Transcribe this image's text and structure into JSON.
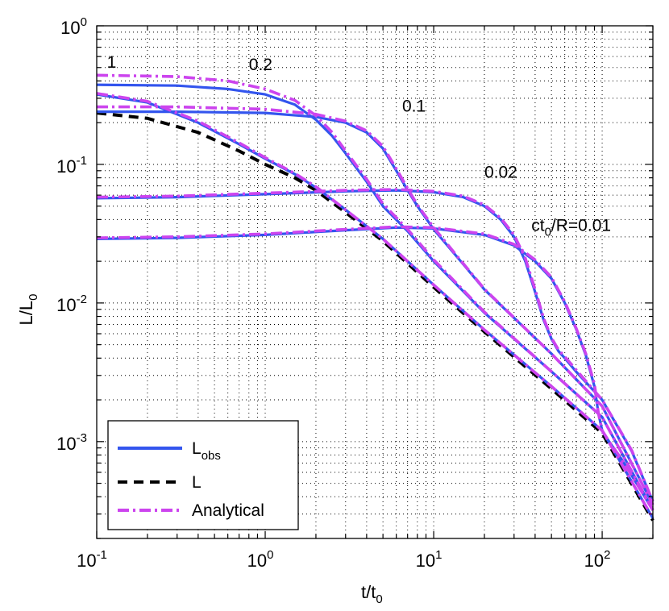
{
  "chart_data": {
    "type": "line",
    "x_scale": "log",
    "y_scale": "log",
    "xlim": [
      0.1,
      200
    ],
    "ylim": [
      0.0002,
      1
    ],
    "grid": true,
    "x_ticks": [
      {
        "base": "10",
        "exp": "-1",
        "value": 0.1
      },
      {
        "base": "10",
        "exp": "0",
        "value": 1
      },
      {
        "base": "10",
        "exp": "1",
        "value": 10
      },
      {
        "base": "10",
        "exp": "2",
        "value": 100
      }
    ],
    "y_ticks": [
      {
        "base": "10",
        "exp": "0",
        "value": 1
      },
      {
        "base": "10",
        "exp": "-1",
        "value": 0.1
      },
      {
        "base": "10",
        "exp": "-2",
        "value": 0.01
      },
      {
        "base": "10",
        "exp": "-3",
        "value": 0.001
      }
    ],
    "xlabel": {
      "main": "t/t",
      "sub": "0"
    },
    "ylabel": {
      "main": "L/L",
      "sub": "0"
    },
    "annotations": [
      {
        "text": "1",
        "x": 0.115,
        "y": 0.5
      },
      {
        "text": "0.2",
        "x": 0.8,
        "y": 0.48
      },
      {
        "text": "0.1",
        "x": 6.5,
        "y": 0.24
      },
      {
        "text": "0.02",
        "x": 20,
        "y": 0.08
      },
      {
        "text": "ct",
        "sub": "0",
        "rest": "/R=0.01",
        "x": 38,
        "y": 0.033
      }
    ],
    "legend": {
      "position": "bottom-left",
      "entries": [
        {
          "label": "L",
          "sub": "obs",
          "style": "solid",
          "color": "#3355ee"
        },
        {
          "label": "L",
          "sub": "",
          "style": "dashed",
          "color": "#000000"
        },
        {
          "label": "Analytical",
          "sub": "",
          "style": "dashdot",
          "color": "#cc44ee"
        }
      ]
    },
    "series": [
      {
        "role": "L",
        "style": "dashed",
        "color": "#000000",
        "x": [
          0.1,
          0.2,
          0.4,
          0.7,
          1,
          1.5,
          2,
          3,
          5,
          10,
          20,
          50,
          100,
          200
        ],
        "y": [
          0.235,
          0.215,
          0.17,
          0.125,
          0.1,
          0.08,
          0.065,
          0.045,
          0.028,
          0.013,
          0.0062,
          0.0024,
          0.00115,
          0.00027
        ]
      },
      {
        "role": "Lobs ct0/R=1",
        "style": "solid",
        "color": "#3355ee",
        "x": [
          0.1,
          0.2,
          0.4,
          0.7,
          1,
          1.5,
          2,
          3,
          5,
          10,
          20,
          50,
          100,
          200
        ],
        "y": [
          0.32,
          0.28,
          0.2,
          0.14,
          0.11,
          0.085,
          0.068,
          0.047,
          0.029,
          0.0135,
          0.0064,
          0.0025,
          0.0012,
          0.00028
        ]
      },
      {
        "role": "Lobs ct0/R=0.2",
        "style": "solid",
        "color": "#3355ee",
        "x": [
          0.1,
          0.3,
          0.6,
          1,
          1.5,
          2,
          2.5,
          3,
          4,
          5,
          7,
          10,
          20,
          50,
          100,
          200
        ],
        "y": [
          0.375,
          0.37,
          0.35,
          0.32,
          0.27,
          0.21,
          0.16,
          0.12,
          0.075,
          0.05,
          0.033,
          0.02,
          0.0085,
          0.0032,
          0.0015,
          0.00032
        ]
      },
      {
        "role": "Lobs ct0/R=0.1",
        "style": "solid",
        "color": "#3355ee",
        "x": [
          0.1,
          0.3,
          1,
          2,
          3,
          4,
          5,
          6,
          7,
          8,
          10,
          15,
          20,
          50,
          100,
          200
        ],
        "y": [
          0.24,
          0.24,
          0.235,
          0.22,
          0.2,
          0.17,
          0.13,
          0.09,
          0.065,
          0.05,
          0.034,
          0.019,
          0.0125,
          0.0043,
          0.0018,
          0.00035
        ]
      },
      {
        "role": "Lobs ct0/R=0.02",
        "style": "solid",
        "color": "#3355ee",
        "x": [
          0.1,
          0.3,
          1,
          3,
          6,
          10,
          15,
          20,
          25,
          30,
          35,
          40,
          45,
          50,
          55,
          60,
          70,
          100,
          150,
          200
        ],
        "y": [
          0.057,
          0.058,
          0.061,
          0.064,
          0.065,
          0.063,
          0.058,
          0.05,
          0.04,
          0.03,
          0.02,
          0.012,
          0.0075,
          0.0055,
          0.0045,
          0.004,
          0.0032,
          0.002,
          0.00085,
          0.00037
        ]
      },
      {
        "role": "Lobs ct0/R=0.01",
        "style": "solid",
        "color": "#3355ee",
        "x": [
          0.1,
          0.3,
          1,
          3,
          6,
          10,
          20,
          30,
          40,
          50,
          60,
          70,
          80,
          90,
          95,
          100,
          110,
          130,
          160,
          200
        ],
        "y": [
          0.029,
          0.0295,
          0.031,
          0.0335,
          0.035,
          0.0345,
          0.031,
          0.026,
          0.02,
          0.015,
          0.01,
          0.0065,
          0.0042,
          0.0025,
          0.0016,
          0.0012,
          0.001,
          0.00075,
          0.0005,
          0.00032
        ]
      },
      {
        "role": "Analytical ct0/R=1",
        "style": "dashdot",
        "color": "#cc44ee",
        "x": [
          0.1,
          0.2,
          0.4,
          0.7,
          1,
          1.5,
          2,
          3,
          5,
          10,
          20,
          50,
          100,
          200
        ],
        "y": [
          0.325,
          0.285,
          0.205,
          0.143,
          0.112,
          0.086,
          0.069,
          0.047,
          0.029,
          0.0135,
          0.0064,
          0.0025,
          0.0012,
          0.00028
        ]
      },
      {
        "role": "Analytical ct0/R=0.2",
        "style": "dashdot",
        "color": "#cc44ee",
        "x": [
          0.1,
          0.3,
          0.6,
          1,
          1.5,
          2,
          2.5,
          3,
          4,
          5,
          7,
          10,
          20,
          50,
          100,
          200
        ],
        "y": [
          0.44,
          0.43,
          0.4,
          0.35,
          0.29,
          0.225,
          0.17,
          0.125,
          0.078,
          0.052,
          0.034,
          0.0205,
          0.0086,
          0.0032,
          0.0015,
          0.00032
        ]
      },
      {
        "role": "Analytical ct0/R=0.1",
        "style": "dashdot",
        "color": "#cc44ee",
        "x": [
          0.1,
          0.3,
          1,
          2,
          3,
          4,
          5,
          6,
          7,
          8,
          10,
          15,
          20,
          50,
          100,
          200
        ],
        "y": [
          0.26,
          0.26,
          0.25,
          0.23,
          0.205,
          0.175,
          0.135,
          0.093,
          0.067,
          0.051,
          0.035,
          0.0192,
          0.0126,
          0.0043,
          0.0018,
          0.00035
        ]
      },
      {
        "role": "Analytical ct0/R=0.02",
        "style": "dashdot",
        "color": "#cc44ee",
        "x": [
          0.1,
          0.3,
          1,
          3,
          6,
          10,
          15,
          20,
          25,
          30,
          35,
          40,
          45,
          50,
          55,
          60,
          70,
          100,
          150,
          200
        ],
        "y": [
          0.058,
          0.059,
          0.062,
          0.065,
          0.066,
          0.064,
          0.059,
          0.051,
          0.041,
          0.031,
          0.021,
          0.0125,
          0.0077,
          0.0056,
          0.0046,
          0.0041,
          0.0033,
          0.002,
          0.00086,
          0.00037
        ]
      },
      {
        "role": "Analytical ct0/R=0.01",
        "style": "dashdot",
        "color": "#cc44ee",
        "x": [
          0.1,
          0.3,
          1,
          3,
          6,
          10,
          20,
          30,
          40,
          50,
          60,
          70,
          80,
          90,
          95,
          100,
          110,
          130,
          160,
          200
        ],
        "y": [
          0.0295,
          0.03,
          0.0315,
          0.034,
          0.0355,
          0.035,
          0.0315,
          0.0265,
          0.0205,
          0.0153,
          0.0102,
          0.0066,
          0.0043,
          0.0026,
          0.0016,
          0.0012,
          0.001,
          0.00075,
          0.0005,
          0.00032
        ]
      }
    ]
  }
}
